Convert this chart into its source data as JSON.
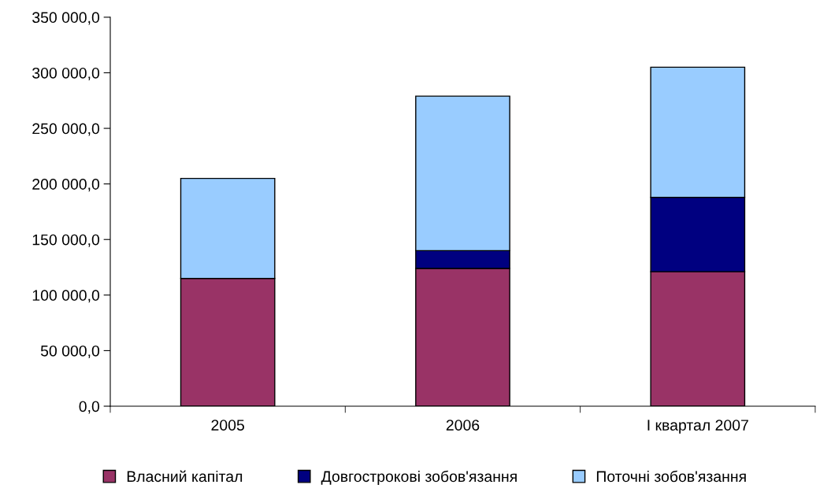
{
  "chart_data": {
    "type": "bar",
    "stacked": true,
    "categories": [
      "2005",
      "2006",
      "I квартал 2007"
    ],
    "series": [
      {
        "name": "Власний капітал",
        "color": "#993366",
        "values": [
          115000,
          124000,
          121000
        ]
      },
      {
        "name": "Довгострокові зобов'язання",
        "color": "#000080",
        "values": [
          0,
          16000,
          67000
        ]
      },
      {
        "name": "Поточні зобов'язання",
        "color": "#99ccff",
        "values": [
          90000,
          139000,
          117000
        ]
      }
    ],
    "ylim": [
      0,
      350000
    ],
    "yticks": [
      {
        "value": 0,
        "label": "0,0"
      },
      {
        "value": 50000,
        "label": "50 000,0"
      },
      {
        "value": 100000,
        "label": "100 000,0"
      },
      {
        "value": 150000,
        "label": "150 000,0"
      },
      {
        "value": 200000,
        "label": "200 000,0"
      },
      {
        "value": 250000,
        "label": "250 000,0"
      },
      {
        "value": 300000,
        "label": "300 000,0"
      },
      {
        "value": 350000,
        "label": "350 000,0"
      }
    ],
    "grid": false,
    "legend": "bottom"
  }
}
